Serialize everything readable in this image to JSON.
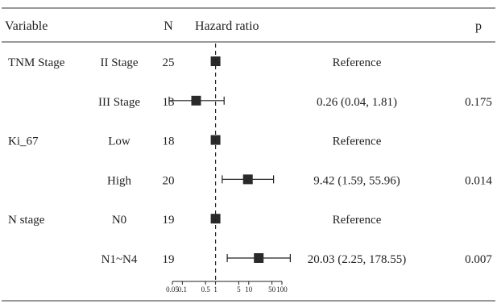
{
  "chart_data": {
    "type": "forest",
    "headers": {
      "variable": "Variable",
      "n": "N",
      "hr": "Hazard ratio",
      "p": "p"
    },
    "rows": [
      {
        "variable": "TNM Stage",
        "level": "II Stage",
        "n": "25",
        "hr": 1,
        "lo": null,
        "hi": null,
        "label": "Reference",
        "p": ""
      },
      {
        "variable": "",
        "level": "III Stage",
        "n": "13",
        "hr": 0.26,
        "lo": 0.04,
        "hi": 1.81,
        "label": "0.26 (0.04, 1.81)",
        "p": "0.175"
      },
      {
        "variable": "Ki_67",
        "level": "Low",
        "n": "18",
        "hr": 1,
        "lo": null,
        "hi": null,
        "label": "Reference",
        "p": ""
      },
      {
        "variable": "",
        "level": "High",
        "n": "20",
        "hr": 9.42,
        "lo": 1.59,
        "hi": 55.96,
        "label": "9.42 (1.59, 55.96)",
        "p": "0.014"
      },
      {
        "variable": "N stage",
        "level": "N0",
        "n": "19",
        "hr": 1,
        "lo": null,
        "hi": null,
        "label": "Reference",
        "p": ""
      },
      {
        "variable": "",
        "level": "N1~N4",
        "n": "19",
        "hr": 20.03,
        "lo": 2.25,
        "hi": 178.55,
        "label": "20.03 (2.25, 178.55)",
        "p": "0.007"
      }
    ],
    "x_axis": {
      "scale": "log",
      "reference_line": 1,
      "ticks": [
        0.05,
        0.1,
        0.5,
        1,
        5,
        10,
        50,
        100
      ],
      "tick_labels": [
        "0.05",
        "0.1",
        "0.5",
        "1",
        "5",
        "10",
        "50",
        "100"
      ]
    }
  }
}
